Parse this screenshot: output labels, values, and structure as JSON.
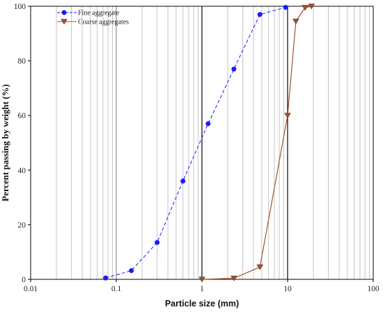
{
  "chart_data": {
    "type": "line",
    "title": "",
    "xlabel": "Particle size (mm)",
    "ylabel": "Percent passing by weight (%)",
    "xscale": "log",
    "xlim": [
      0.01,
      100
    ],
    "ylim": [
      0,
      100
    ],
    "x_tick_labels": [
      "0.01",
      "0.1",
      "1",
      "10",
      "100"
    ],
    "y_tick_labels": [
      "0",
      "20",
      "40",
      "60",
      "80",
      "100"
    ],
    "grid": "vertical minor lines on log scale, bold line at decades 1 and 10",
    "legend_position": "top-left",
    "series": [
      {
        "name": "Fine aggregate",
        "color": "#1a1aff",
        "marker": "circle",
        "line_style": "dashed",
        "points": [
          {
            "x": 0.075,
            "y": 0.5
          },
          {
            "x": 0.15,
            "y": 3.2
          },
          {
            "x": 0.3,
            "y": 13.5
          },
          {
            "x": 0.6,
            "y": 36
          },
          {
            "x": 1.18,
            "y": 57
          },
          {
            "x": 2.36,
            "y": 77
          },
          {
            "x": 4.75,
            "y": 97
          },
          {
            "x": 9.5,
            "y": 99.6
          }
        ]
      },
      {
        "name": "Coarse aggregates",
        "color": "#a0522d",
        "marker": "triangle-down",
        "line_style": "solid",
        "points": [
          {
            "x": 1.0,
            "y": 0
          },
          {
            "x": 2.36,
            "y": 0.4
          },
          {
            "x": 4.75,
            "y": 4.5
          },
          {
            "x": 10,
            "y": 60
          },
          {
            "x": 12.5,
            "y": 94.5
          },
          {
            "x": 16,
            "y": 99.5
          },
          {
            "x": 19,
            "y": 100
          }
        ]
      }
    ]
  }
}
